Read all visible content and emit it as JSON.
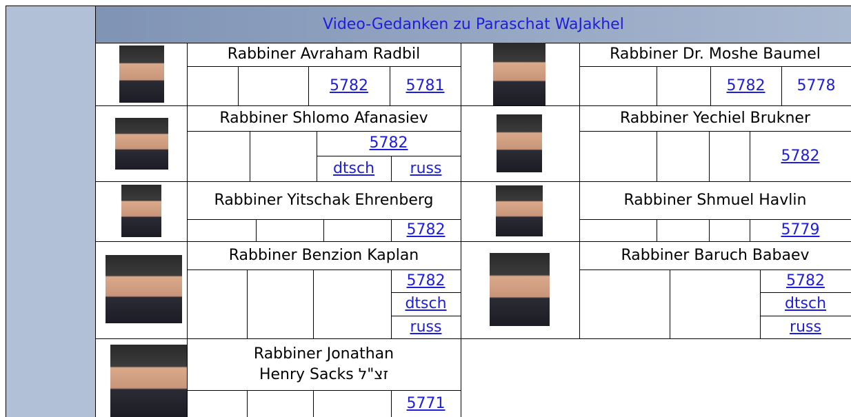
{
  "header": {
    "title": "Video-Gedanken zu Paraschat WaJakhel"
  },
  "rabbis": [
    {
      "name": "Rabbiner Avraham Radbil",
      "links": [
        "5782",
        "5781"
      ]
    },
    {
      "name": "Rabbiner Dr. Moshe Baumel",
      "links": [
        "5782",
        "5778"
      ]
    },
    {
      "name": "Rabbiner Shlomo Afanasiev",
      "links": [
        "5782",
        "dtsch",
        "russ"
      ]
    },
    {
      "name": "Rabbiner Yechiel Brukner",
      "links": [
        "5782"
      ]
    },
    {
      "name": "Rabbiner Yitschak Ehrenberg",
      "links": [
        "5782"
      ]
    },
    {
      "name": "Rabbiner Shmuel Havlin",
      "links": [
        "5779"
      ]
    },
    {
      "name": "Rabbiner Benzion Kaplan",
      "links": [
        "5782",
        "dtsch",
        "russ"
      ]
    },
    {
      "name": "Rabbiner Baruch Babaev",
      "links": [
        "5782",
        "dtsch",
        "russ"
      ]
    },
    {
      "name": "Rabbiner Jonathan Henry Sacks זצ\"ל",
      "links": [
        "5771"
      ]
    }
  ]
}
